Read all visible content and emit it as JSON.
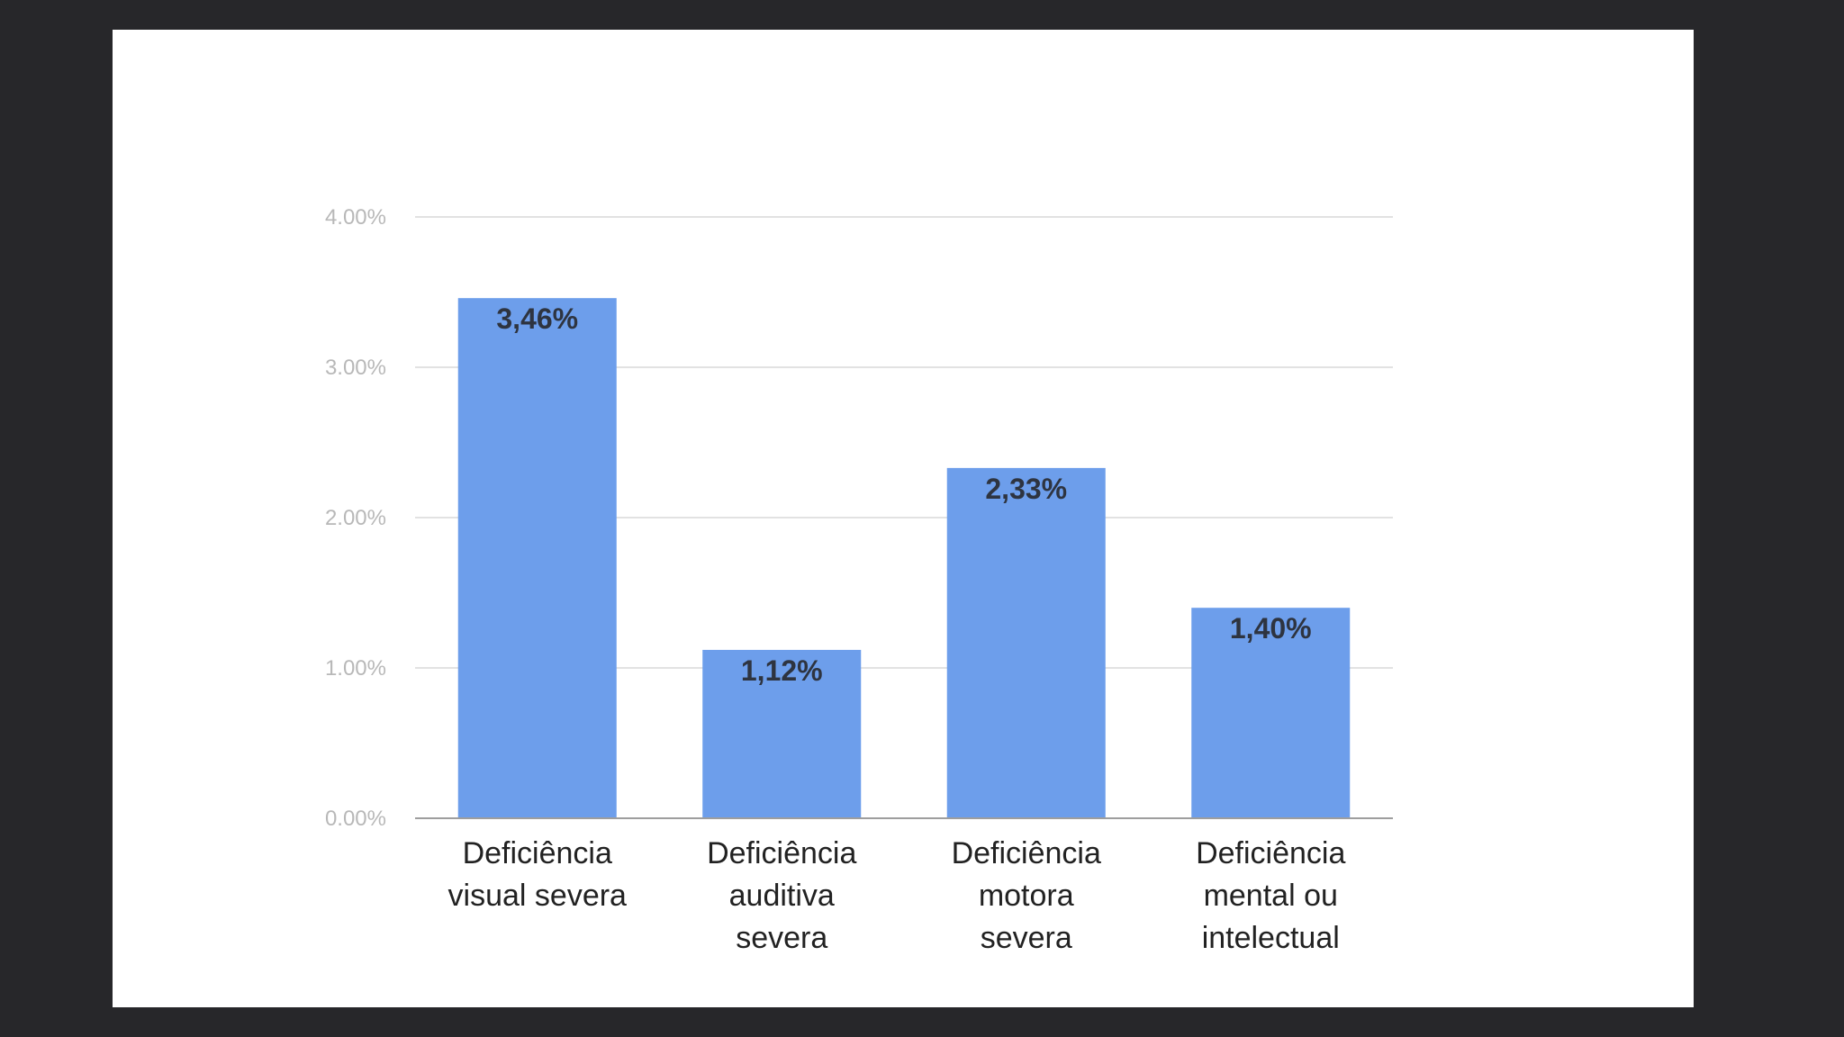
{
  "chart_data": {
    "type": "bar",
    "categories": [
      [
        "Deficiência",
        "visual severa"
      ],
      [
        "Deficiência",
        "auditiva",
        "severa"
      ],
      [
        "Deficiência",
        "motora",
        "severa"
      ],
      [
        "Deficiência",
        "mental ou",
        "intelectual"
      ]
    ],
    "values": [
      3.46,
      1.12,
      2.33,
      1.4
    ],
    "data_labels": [
      "3,46%",
      "1,12%",
      "2,33%",
      "1,40%"
    ],
    "ylim": [
      0,
      4
    ],
    "yticks": [
      0,
      1,
      2,
      3,
      4
    ],
    "ytick_labels": [
      "0.00%",
      "1.00%",
      "2.00%",
      "3.00%",
      "4.00%"
    ],
    "title": "",
    "xlabel": "",
    "ylabel": "",
    "grid": true,
    "legend": "none",
    "colors": {
      "bar": "#6d9eeb",
      "grid": "#e2e2e2",
      "baseline": "#9e9e9e",
      "background": "#ffffff",
      "frame": "#27272a"
    }
  }
}
